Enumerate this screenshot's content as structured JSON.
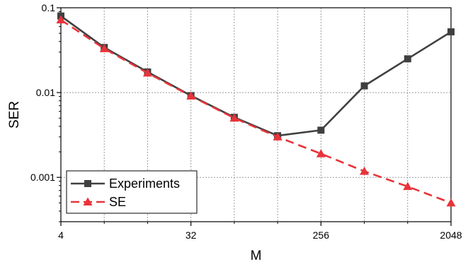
{
  "chart_data": {
    "type": "line",
    "title": "",
    "xlabel": "M",
    "ylabel": "SER",
    "xscale": "log2",
    "yscale": "log10",
    "xlim": [
      4,
      2048
    ],
    "ylim": [
      0.0003,
      0.1
    ],
    "xticks": [
      {
        "value": 4,
        "label": "4"
      },
      {
        "value": 32,
        "label": "32"
      },
      {
        "value": 256,
        "label": "256"
      },
      {
        "value": 2048,
        "label": "2048"
      }
    ],
    "yticks": [
      {
        "value": 0.1,
        "label": "0.1"
      },
      {
        "value": 0.01,
        "label": "0.01"
      },
      {
        "value": 0.001,
        "label": "0.001"
      }
    ],
    "grid": true,
    "legend_position": "bottom-left",
    "series": [
      {
        "name": "Experiments",
        "color": "#404040",
        "marker": "square",
        "dash": "solid",
        "x": [
          4,
          8,
          16,
          32,
          64,
          128,
          256,
          512,
          1024,
          2048
        ],
        "y": [
          0.08,
          0.034,
          0.0175,
          0.0092,
          0.0051,
          0.0031,
          0.0036,
          0.012,
          0.025,
          0.052
        ]
      },
      {
        "name": "SE",
        "color": "#e8343a",
        "marker": "triangle",
        "dash": "dashed",
        "x": [
          4,
          8,
          16,
          32,
          64,
          128,
          256,
          512,
          1024,
          2048
        ],
        "y": [
          0.072,
          0.033,
          0.017,
          0.0091,
          0.005,
          0.003,
          0.0019,
          0.00118,
          0.00078,
          0.0005
        ]
      }
    ]
  }
}
